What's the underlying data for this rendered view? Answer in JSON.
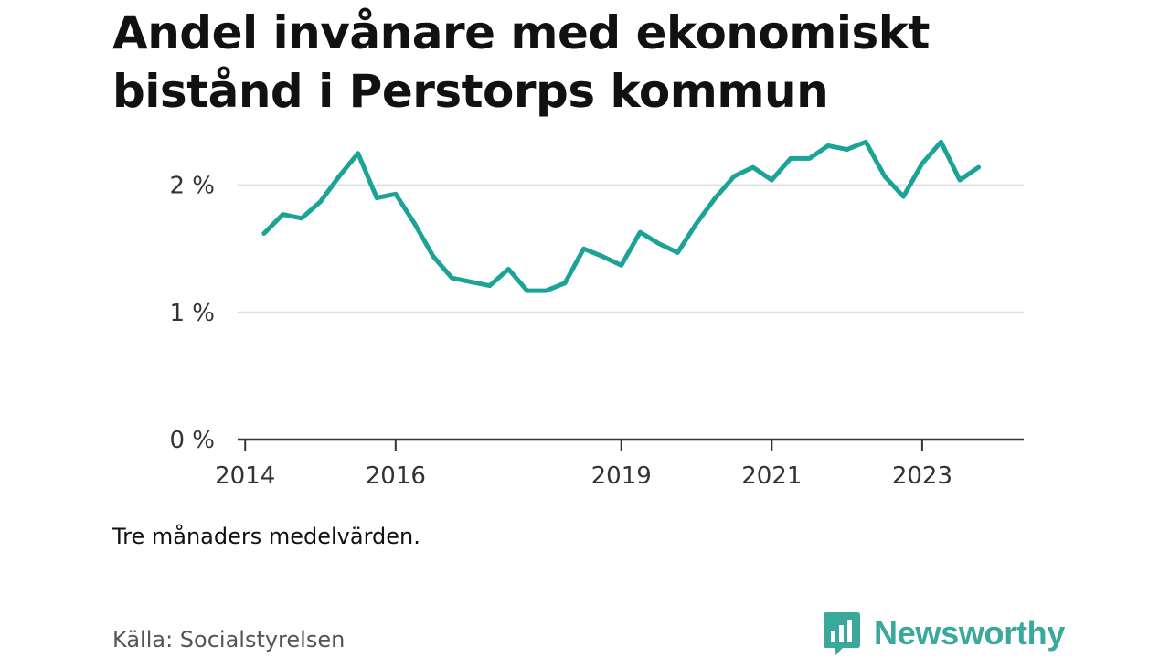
{
  "title": "Andel invånare med ekonomiskt bistånd i Perstorps kommun",
  "note": "Tre månaders medelvärden.",
  "source": "Källa: Socialstyrelsen",
  "brand": {
    "name": "Newsworthy",
    "color": "#3aa89b"
  },
  "colors": {
    "line": "#1aa396",
    "grid": "#dddddd",
    "axis": "#333333"
  },
  "chart_data": {
    "type": "line",
    "title": "Andel invånare med ekonomiskt bistånd i Perstorps kommun",
    "xlabel": "",
    "ylabel": "",
    "y_ticks": [
      0,
      1,
      2
    ],
    "y_tick_labels": [
      "0 %",
      "1 %",
      "2 %"
    ],
    "ylim": [
      0,
      2.5
    ],
    "xlim": [
      2013.9,
      2024.35
    ],
    "x_ticks": [
      2014,
      2016,
      2019,
      2021,
      2023
    ],
    "x_tick_labels": [
      "2014",
      "2016",
      "2019",
      "2021",
      "2023"
    ],
    "grid": true,
    "legend": "none",
    "series": [
      {
        "x": [
          2014.25,
          2014.5,
          2014.75,
          2015.0,
          2015.25,
          2015.5,
          2015.75,
          2016.0,
          2016.25,
          2016.5,
          2016.75,
          2017.0,
          2017.25,
          2017.5,
          2017.75,
          2018.0,
          2018.25,
          2018.5,
          2018.75,
          2019.0,
          2019.25,
          2019.5,
          2019.75,
          2020.0,
          2020.25,
          2020.5,
          2020.75,
          2021.0,
          2021.25,
          2021.5,
          2021.75,
          2022.0,
          2022.25,
          2022.5,
          2022.75,
          2023.0,
          2023.25,
          2023.5,
          2023.75
        ],
        "values": [
          1.62,
          1.77,
          1.74,
          1.87,
          2.07,
          2.25,
          1.9,
          1.93,
          1.7,
          1.44,
          1.27,
          1.24,
          1.21,
          1.34,
          1.17,
          1.17,
          1.23,
          1.5,
          1.44,
          1.37,
          1.63,
          1.54,
          1.47,
          1.7,
          1.9,
          2.07,
          2.14,
          2.04,
          2.21,
          2.21,
          2.31,
          2.28,
          2.34,
          2.07,
          1.91,
          2.17,
          2.34,
          2.04,
          2.14
        ]
      }
    ]
  }
}
